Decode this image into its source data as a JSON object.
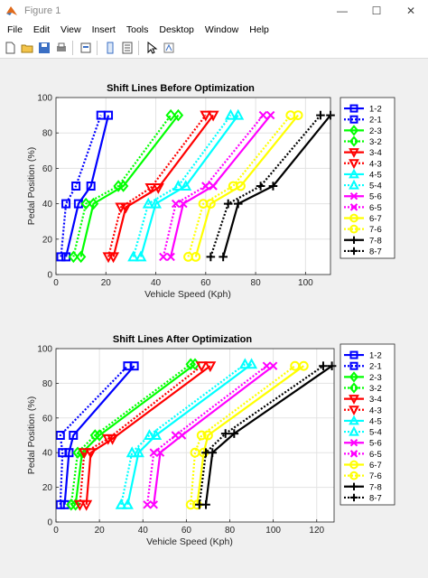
{
  "window": {
    "title": "Figure 1",
    "minimize": "—",
    "maximize": "☐",
    "close": "✕"
  },
  "menu": [
    "File",
    "Edit",
    "View",
    "Insert",
    "Tools",
    "Desktop",
    "Window",
    "Help"
  ],
  "toolbar": [
    "new-figure-icon",
    "open-file-icon",
    "save-icon",
    "print-icon",
    "print-preview-icon",
    "link-plot-icon",
    "insert-legend-icon",
    "select-arrow-icon",
    "edit-plot-icon"
  ],
  "style": {
    "1-2": {
      "color": "#0000ff",
      "dash": "solid",
      "marker": "square"
    },
    "2-1": {
      "color": "#0000ff",
      "dash": "dotted",
      "marker": "square"
    },
    "2-3": {
      "color": "#00ff00",
      "dash": "solid",
      "marker": "diamond"
    },
    "3-2": {
      "color": "#00ff00",
      "dash": "dotted",
      "marker": "diamond"
    },
    "3-4": {
      "color": "#ff0000",
      "dash": "solid",
      "marker": "triangle-down"
    },
    "4-3": {
      "color": "#ff0000",
      "dash": "dotted",
      "marker": "triangle-down"
    },
    "4-5": {
      "color": "#00ffff",
      "dash": "solid",
      "marker": "triangle-up"
    },
    "5-4": {
      "color": "#00ffff",
      "dash": "dotted",
      "marker": "triangle-up"
    },
    "5-6": {
      "color": "#ff00ff",
      "dash": "solid",
      "marker": "x"
    },
    "6-5": {
      "color": "#ff00ff",
      "dash": "dotted",
      "marker": "x"
    },
    "6-7": {
      "color": "#ffff00",
      "dash": "solid",
      "marker": "circle"
    },
    "7-6": {
      "color": "#ffff00",
      "dash": "dotted",
      "marker": "circle"
    },
    "7-8": {
      "color": "#000000",
      "dash": "solid",
      "marker": "plus"
    },
    "8-7": {
      "color": "#000000",
      "dash": "dotted",
      "marker": "plus"
    }
  },
  "chart_data": [
    {
      "type": "line",
      "title": "Shift Lines Before Optimization",
      "xlabel": "Vehicle Speed (Kph)",
      "ylabel": "Pedal Position (%)",
      "xlim": [
        0,
        110
      ],
      "ylim": [
        0,
        100
      ],
      "xticks": [
        0,
        20,
        40,
        60,
        80,
        100
      ],
      "yticks": [
        0,
        20,
        40,
        60,
        80,
        100
      ],
      "grid": true,
      "legend": "right",
      "series": [
        {
          "name": "1-2",
          "points": [
            [
              4,
              10
            ],
            [
              9,
              40
            ],
            [
              14,
              50
            ],
            [
              21,
              90
            ]
          ]
        },
        {
          "name": "2-1",
          "points": [
            [
              2,
              10
            ],
            [
              4,
              40
            ],
            [
              8,
              50
            ],
            [
              18,
              90
            ]
          ]
        },
        {
          "name": "2-3",
          "points": [
            [
              10,
              10
            ],
            [
              15,
              40
            ],
            [
              27,
              50
            ],
            [
              49,
              90
            ]
          ]
        },
        {
          "name": "3-2",
          "points": [
            [
              7,
              10
            ],
            [
              12,
              40
            ],
            [
              25,
              50
            ],
            [
              46,
              90
            ]
          ]
        },
        {
          "name": "3-4",
          "points": [
            [
              23,
              10
            ],
            [
              28,
              38
            ],
            [
              41,
              49
            ],
            [
              63,
              90
            ]
          ]
        },
        {
          "name": "4-3",
          "points": [
            [
              21,
              10
            ],
            [
              26,
              38
            ],
            [
              38,
              49
            ],
            [
              60,
              90
            ]
          ]
        },
        {
          "name": "4-5",
          "points": [
            [
              34,
              10
            ],
            [
              40,
              40
            ],
            [
              52,
              50
            ],
            [
              73,
              90
            ]
          ]
        },
        {
          "name": "5-4",
          "points": [
            [
              31,
              10
            ],
            [
              37,
              40
            ],
            [
              49,
              50
            ],
            [
              70,
              90
            ]
          ]
        },
        {
          "name": "5-6",
          "points": [
            [
              46,
              10
            ],
            [
              51,
              40
            ],
            [
              63,
              50
            ],
            [
              86,
              90
            ]
          ]
        },
        {
          "name": "6-5",
          "points": [
            [
              43,
              10
            ],
            [
              48,
              40
            ],
            [
              60,
              50
            ],
            [
              83,
              90
            ]
          ]
        },
        {
          "name": "6-7",
          "points": [
            [
              56,
              10
            ],
            [
              62,
              40
            ],
            [
              74,
              50
            ],
            [
              97,
              90
            ]
          ]
        },
        {
          "name": "7-6",
          "points": [
            [
              53,
              10
            ],
            [
              59,
              40
            ],
            [
              71,
              50
            ],
            [
              94,
              90
            ]
          ]
        },
        {
          "name": "7-8",
          "points": [
            [
              67,
              10
            ],
            [
              73,
              40
            ],
            [
              87,
              50
            ],
            [
              110,
              90
            ]
          ]
        },
        {
          "name": "8-7",
          "points": [
            [
              62,
              10
            ],
            [
              69,
              40
            ],
            [
              82,
              50
            ],
            [
              106,
              90
            ]
          ]
        }
      ]
    },
    {
      "type": "line",
      "title": "Shift Lines After Optimization",
      "xlabel": "Vehicle Speed (Kph)",
      "ylabel": "Pedal Position (%)",
      "xlim": [
        0,
        128
      ],
      "ylim": [
        0,
        100
      ],
      "xticks": [
        0,
        20,
        40,
        60,
        80,
        100,
        120
      ],
      "yticks": [
        0,
        20,
        40,
        60,
        80,
        100
      ],
      "grid": true,
      "legend": "right",
      "series": [
        {
          "name": "1-2",
          "points": [
            [
              4,
              10
            ],
            [
              6,
              40
            ],
            [
              8,
              50
            ],
            [
              36,
              90
            ]
          ]
        },
        {
          "name": "2-1",
          "points": [
            [
              2,
              10
            ],
            [
              3,
              40
            ],
            [
              2,
              50
            ],
            [
              33,
              90
            ]
          ]
        },
        {
          "name": "2-3",
          "points": [
            [
              9,
              10
            ],
            [
              12,
              40
            ],
            [
              20,
              50
            ],
            [
              64,
              91
            ]
          ]
        },
        {
          "name": "3-2",
          "points": [
            [
              7,
              10
            ],
            [
              10,
              40
            ],
            [
              18,
              50
            ],
            [
              62,
              91
            ]
          ]
        },
        {
          "name": "3-4",
          "points": [
            [
              14,
              10
            ],
            [
              16,
              40
            ],
            [
              26,
              48
            ],
            [
              71,
              90
            ]
          ]
        },
        {
          "name": "4-3",
          "points": [
            [
              11,
              10
            ],
            [
              13,
              40
            ],
            [
              24,
              48
            ],
            [
              67,
              90
            ]
          ]
        },
        {
          "name": "4-5",
          "points": [
            [
              33,
              10
            ],
            [
              38,
              40
            ],
            [
              46,
              50
            ],
            [
              90,
              91
            ]
          ]
        },
        {
          "name": "5-4",
          "points": [
            [
              30,
              10
            ],
            [
              35,
              40
            ],
            [
              43,
              50
            ],
            [
              87,
              91
            ]
          ]
        },
        {
          "name": "5-6",
          "points": [
            [
              45,
              10
            ],
            [
              48,
              40
            ],
            [
              58,
              50
            ],
            [
              100,
              90
            ]
          ]
        },
        {
          "name": "6-5",
          "points": [
            [
              42,
              10
            ],
            [
              45,
              40
            ],
            [
              55,
              50
            ],
            [
              97,
              90
            ]
          ]
        },
        {
          "name": "6-7",
          "points": [
            [
              65,
              10
            ],
            [
              68,
              40
            ],
            [
              70,
              50
            ],
            [
              114,
              90
            ]
          ]
        },
        {
          "name": "7-6",
          "points": [
            [
              62,
              10
            ],
            [
              64,
              40
            ],
            [
              67,
              50
            ],
            [
              110,
              90
            ]
          ]
        },
        {
          "name": "7-8",
          "points": [
            [
              69,
              10
            ],
            [
              72,
              40
            ],
            [
              82,
              51
            ],
            [
              127,
              90
            ]
          ]
        },
        {
          "name": "8-7",
          "points": [
            [
              66,
              10
            ],
            [
              69,
              40
            ],
            [
              78,
              51
            ],
            [
              123,
              90
            ]
          ]
        }
      ]
    }
  ]
}
